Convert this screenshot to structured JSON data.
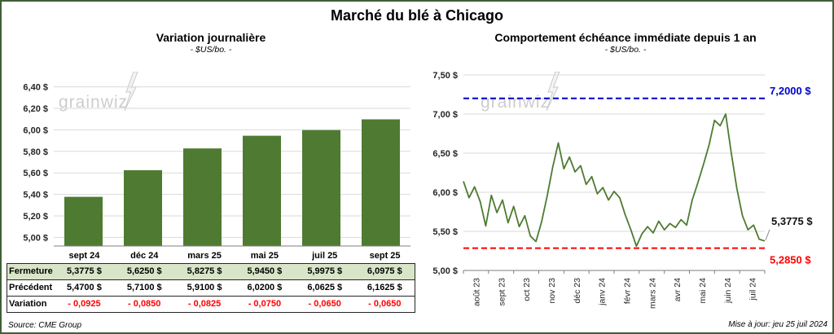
{
  "frame": {
    "title": "Marché du blé à Chicago",
    "source": "Source: CME Group",
    "updated": "Mise à jour: jeu 25 juil 2024",
    "watermark": "grainwiz"
  },
  "left_panel": {
    "title": "Variation journalière",
    "subtitle": "- $US/bo. -"
  },
  "right_panel": {
    "title": "Comportement échéance immédiate depuis 1 an",
    "subtitle": "- $US/bo. -"
  },
  "table": {
    "columns": [
      "sept 24",
      "déc 24",
      "mars 25",
      "mai 25",
      "juil 25",
      "sept 25"
    ],
    "rows": [
      {
        "label": "Fermeture",
        "values": [
          "5,3775 $",
          "5,6250 $",
          "5,8275 $",
          "5,9450 $",
          "5,9975 $",
          "6,0975 $"
        ]
      },
      {
        "label": "Précédent",
        "values": [
          "5,4700 $",
          "5,7100 $",
          "5,9100 $",
          "6,0200 $",
          "6,0625 $",
          "6,1625 $"
        ]
      },
      {
        "label": "Variation",
        "values": [
          "- 0,0925",
          "- 0,0850",
          "- 0,0825",
          "- 0,0750",
          "- 0,0650",
          "- 0,0650"
        ]
      }
    ]
  },
  "colors": {
    "bar_green": "#4e7b31",
    "line_green": "#4e7b31",
    "ref_high_blue": "#0000cc",
    "ref_low_red": "#ff0000",
    "fermeture_row_bg": "#d9e5c8",
    "variation_red": "#ff0000",
    "frame_border": "#3f5f35"
  },
  "chart_data": [
    {
      "type": "bar",
      "title": "Variation journalière",
      "subtitle": "- $US/bo. -",
      "categories": [
        "sept 24",
        "déc 24",
        "mars 25",
        "mai 25",
        "juil 25",
        "sept 25"
      ],
      "values": [
        5.3775,
        5.625,
        5.8275,
        5.945,
        5.9975,
        6.0975
      ],
      "ylim": [
        4.92,
        6.48
      ],
      "yticks": [
        {
          "v": 6.4,
          "label": "6,40 $"
        },
        {
          "v": 6.2,
          "label": "6,20 $"
        },
        {
          "v": 6.0,
          "label": "6,00 $"
        },
        {
          "v": 5.8,
          "label": "5,80 $"
        },
        {
          "v": 5.6,
          "label": "5,60 $"
        },
        {
          "v": 5.4,
          "label": "5,40 $"
        },
        {
          "v": 5.2,
          "label": "5,20 $"
        },
        {
          "v": 5.0,
          "label": "5,00 $"
        }
      ],
      "bar_color": "#4e7b31",
      "grid": true,
      "legend": false
    },
    {
      "type": "line",
      "title": "Comportement échéance immédiate depuis 1 an",
      "subtitle": "- $US/bo. -",
      "x_labels": [
        "août 23",
        "sept 23",
        "oct 23",
        "nov 23",
        "déc 23",
        "janv 24",
        "févr 24",
        "mars 24",
        "avr 24",
        "mai 24",
        "juin 24",
        "juil 24"
      ],
      "ylim": [
        5.0,
        7.5
      ],
      "yticks": [
        {
          "v": 7.5,
          "label": "7,50 $"
        },
        {
          "v": 7.0,
          "label": "7,00 $"
        },
        {
          "v": 6.5,
          "label": "6,50 $"
        },
        {
          "v": 6.0,
          "label": "6,00 $"
        },
        {
          "v": 5.5,
          "label": "5,50 $"
        },
        {
          "v": 5.0,
          "label": "5,00 $"
        }
      ],
      "values": [
        6.14,
        5.93,
        6.07,
        5.88,
        5.57,
        5.96,
        5.74,
        5.9,
        5.61,
        5.82,
        5.56,
        5.7,
        5.44,
        5.37,
        5.62,
        5.95,
        6.32,
        6.63,
        6.3,
        6.45,
        6.26,
        6.34,
        6.1,
        6.2,
        5.98,
        6.06,
        5.9,
        6.01,
        5.93,
        5.71,
        5.52,
        5.31,
        5.47,
        5.56,
        5.48,
        5.63,
        5.52,
        5.6,
        5.55,
        5.65,
        5.58,
        5.9,
        6.12,
        6.35,
        6.6,
        6.92,
        6.85,
        7.0,
        6.5,
        6.05,
        5.7,
        5.52,
        5.58,
        5.4,
        5.3775
      ],
      "line_color": "#4e7b31",
      "last_value": 5.3775,
      "last_value_label": "5,3775 $",
      "ref_lines": [
        {
          "v": 7.2,
          "label": "7,2000 $",
          "color": "#0000cc",
          "style": "dashed"
        },
        {
          "v": 5.285,
          "label": "5,2850 $",
          "color": "#ff0000",
          "style": "dashed"
        }
      ],
      "grid": true,
      "legend": false
    }
  ]
}
